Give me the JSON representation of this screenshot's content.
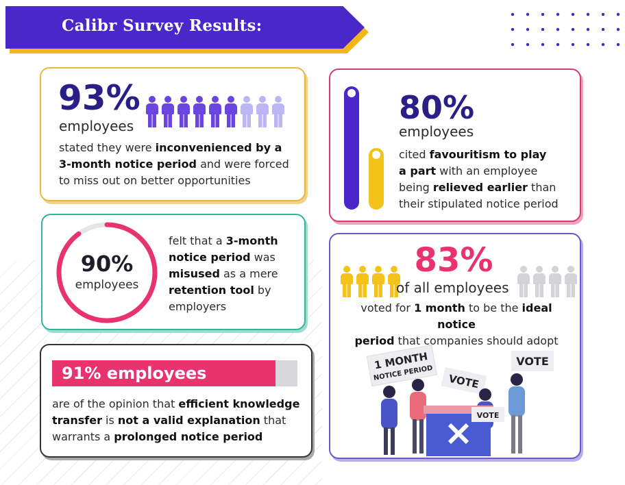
{
  "banner": {
    "title": "Calibr Survey Results:"
  },
  "stat_93": {
    "value": "93%",
    "unit": "employees",
    "t1": "stated they were ",
    "b1": "inconvenienced by a",
    "b2": "3-month notice period",
    "t2": " and were forced",
    "t3": "to miss out on better opportunities",
    "icons_filled": 6,
    "icons_light": 3
  },
  "stat_80": {
    "value": "80%",
    "unit": "employees",
    "t1": "cited ",
    "b1": "favouritism to play",
    "b2": "a part",
    "t2": " with an employee",
    "t3": "being ",
    "b3": "relieved earlier",
    "t4": " than",
    "t5": "their stipulated notice period"
  },
  "stat_90": {
    "value": "90%",
    "unit": "employees",
    "ring_fraction": 0.9,
    "t1": "felt that a ",
    "b1": "3-month",
    "b2": "notice period",
    "t2": " was",
    "b3": "misused",
    "t3": " as a mere",
    "b4": "retention tool",
    "t4": " by",
    "t5": "employers"
  },
  "stat_83": {
    "value": "83%",
    "unit": "of all employees",
    "t1": "voted for ",
    "b1": "1 month",
    "t2": " to be the ",
    "b2": "ideal notice",
    "b3": "period",
    "t3": " that companies should adopt",
    "sign1_line1": "1 MONTH",
    "sign1_line2": "NOTICE PERIOD",
    "sign2": "VOTE",
    "sign3": "VOTE",
    "sign4": "VOTE"
  },
  "stat_91": {
    "bar_label": "91% employees",
    "bar_fraction": 0.91,
    "t1": "are of the opinion that ",
    "b1": "efficient knowledge",
    "b2": "transfer",
    "t2": " is ",
    "b3": "not a valid explanation",
    "t3": " that",
    "t4": "warrants a ",
    "b4": "prolonged notice period"
  },
  "colors": {
    "purple": "#4a27c9",
    "yellow": "#f3b71a",
    "pink": "#e8336f",
    "teal": "#2fb699",
    "light_purple": "#b8b3f0",
    "grey": "#d4d4d8"
  }
}
